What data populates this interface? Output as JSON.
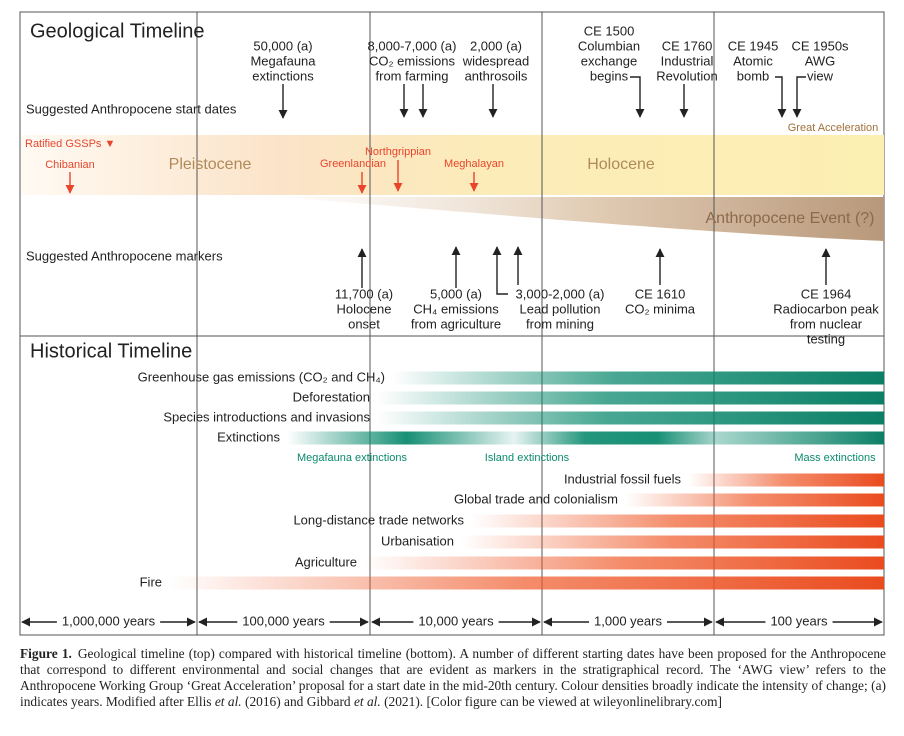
{
  "geological": {
    "title": "Geological Timeline",
    "start_dates_label": "Suggested Anthropocene start dates",
    "start_dates": [
      {
        "lines": [
          "50,000 (a)",
          "Megafauna",
          "extinctions"
        ]
      },
      {
        "lines": [
          "8,000-7,000 (a)",
          "CO₂ emissions",
          "from farming"
        ]
      },
      {
        "lines": [
          "2,000 (a)",
          "widespread",
          "anthrosoils"
        ]
      },
      {
        "lines": [
          "CE 1500",
          "Columbian",
          "exchange",
          "begins"
        ]
      },
      {
        "lines": [
          "CE 1760",
          "Industrial",
          "Revolution"
        ]
      },
      {
        "lines": [
          "CE 1945",
          "Atomic",
          "bomb"
        ]
      },
      {
        "lines": [
          "CE 1950s",
          "AWG",
          "view"
        ]
      }
    ],
    "great_acceleration": "Great Acceleration",
    "ratified_label": "Ratified GSSPs ▼",
    "gssps": [
      "Chibanian",
      "Greenlandian",
      "Northgrippian",
      "Meghalayan"
    ],
    "epochs": [
      "Pleistocene",
      "Holocene"
    ],
    "anthropocene_event": "Anthropocene Event (?)",
    "markers_label": "Suggested Anthropocene markers",
    "markers": [
      {
        "lines": [
          "11,700 (a)",
          "Holocene",
          "onset"
        ]
      },
      {
        "lines": [
          "5,000 (a)",
          "CH₄ emissions",
          "from agriculture"
        ]
      },
      {
        "lines": [
          "3,000-2,000 (a)",
          "Lead pollution",
          "from mining"
        ]
      },
      {
        "lines": [
          "CE 1610",
          "CO₂ minima"
        ]
      },
      {
        "lines": [
          "CE 1964",
          "Radiocarbon peak",
          "from nuclear",
          "testing"
        ]
      }
    ]
  },
  "historical": {
    "title": "Historical Timeline",
    "drivers": [
      "Greenhouse gas emissions (CO₂ and CH₄)",
      "Deforestation",
      "Species introductions and invasions",
      "Extinctions",
      "Industrial fossil fuels",
      "Global trade and colonialism",
      "Long-distance trade networks",
      "Urbanisation",
      "Agriculture",
      "Fire"
    ],
    "extinction_labels": [
      "Megafauna extinctions",
      "Island extinctions",
      "Mass extinctions"
    ]
  },
  "scale": [
    "1,000,000 years",
    "100,000 years",
    "10,000 years",
    "1,000 years",
    "100 years"
  ],
  "caption": {
    "label": "Figure 1.",
    "parts": [
      "Geological timeline (top) compared with historical timeline (bottom). A number of different starting dates have been proposed for the Anthropocene that correspond to different environmental and social changes that are evident as markers in the stratigraphical record. The ‘AWG view’ refers to the Anthropocene Working Group ‘Great Acceleration’ proposal for a start date in the mid-20th century. Colour densities broadly indicate the intensity of change; (a) indicates years. Modified after Ellis ",
      "et al.",
      " (2016) and Gibbard ",
      "et al.",
      " (2021). [Color figure can be viewed at wileyonlinelibrary.com]"
    ]
  }
}
